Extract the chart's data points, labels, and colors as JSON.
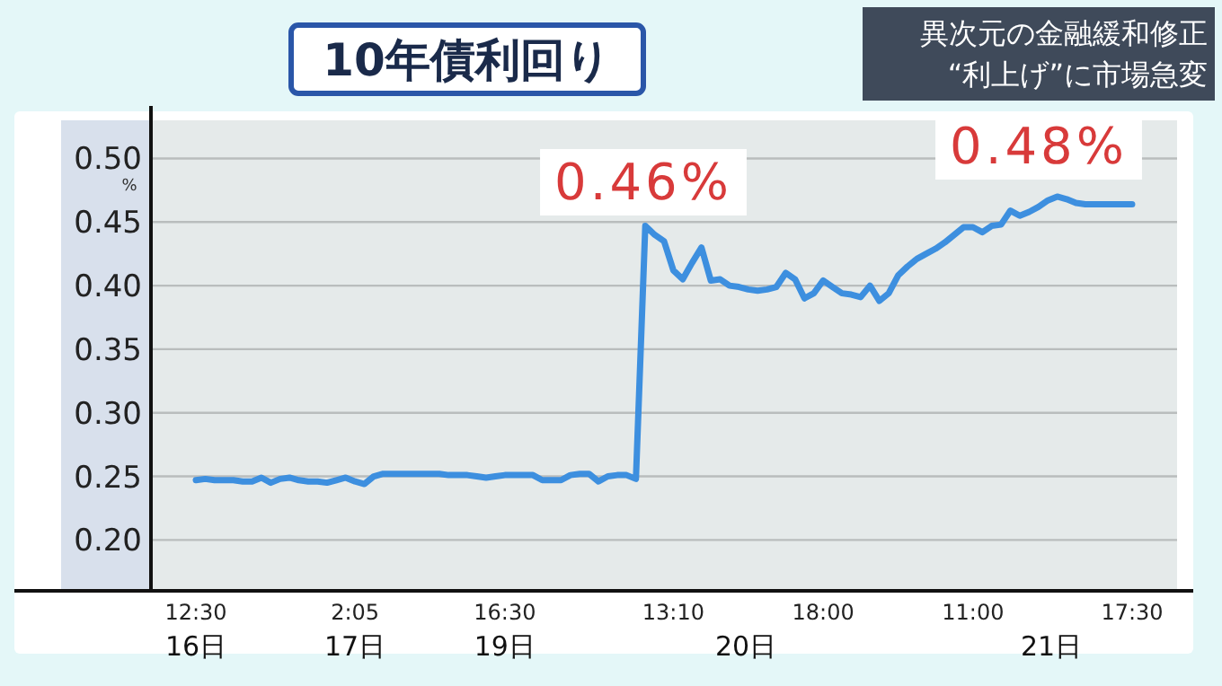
{
  "chart_data": {
    "type": "line",
    "title": "10年債利回り",
    "subtitle": "異次元の金融緩和修正\n“利上げ”に市場急変",
    "ylabel": "%",
    "categories": [
      "12:30\n16日",
      null,
      null,
      null,
      null,
      null,
      null,
      null,
      null,
      null,
      null,
      null,
      null,
      null,
      null,
      null,
      null,
      "2:05\n17日",
      null,
      null,
      null,
      null,
      null,
      null,
      null,
      null,
      null,
      null,
      null,
      null,
      null,
      null,
      null,
      "16:30\n19日",
      null,
      null,
      null,
      null,
      null,
      null,
      null,
      null,
      null,
      null,
      null,
      null,
      null,
      null,
      null,
      null,
      null,
      "13:10",
      null,
      null,
      null,
      null,
      null,
      null,
      null,
      null,
      null,
      null,
      null,
      null,
      null,
      null,
      null,
      "18:00",
      null,
      null,
      null,
      null,
      null,
      null,
      null,
      null,
      null,
      null,
      null,
      null,
      null,
      null,
      null,
      "11:00",
      null,
      null,
      null,
      null,
      null,
      null,
      null,
      null,
      null,
      null,
      null,
      null,
      null,
      null,
      null,
      null,
      "17:30"
    ],
    "series": [
      {
        "color": "#3d8fdf",
        "values": [
          0.247,
          0.248,
          0.247,
          0.247,
          0.247,
          0.246,
          0.246,
          0.249,
          0.245,
          0.248,
          0.249,
          0.247,
          0.246,
          0.246,
          0.245,
          0.247,
          0.249,
          0.246,
          0.244,
          0.25,
          0.252,
          0.252,
          0.252,
          0.252,
          0.252,
          0.252,
          0.252,
          0.251,
          0.251,
          0.251,
          0.25,
          0.249,
          0.25,
          0.251,
          0.251,
          0.251,
          0.251,
          0.247,
          0.247,
          0.247,
          0.251,
          0.252,
          0.252,
          0.246,
          0.25,
          0.251,
          0.251,
          0.248,
          0.447,
          0.44,
          0.435,
          0.412,
          0.405,
          0.418,
          0.43,
          0.404,
          0.405,
          0.4,
          0.399,
          0.397,
          0.396,
          0.397,
          0.399,
          0.41,
          0.405,
          0.39,
          0.394,
          0.404,
          0.399,
          0.394,
          0.393,
          0.391,
          0.4,
          0.388,
          0.394,
          0.408,
          0.415,
          0.421,
          0.425,
          0.429,
          0.434,
          0.44,
          0.446,
          0.446,
          0.442,
          0.447,
          0.448,
          0.459,
          0.455,
          0.458,
          0.462,
          0.467,
          0.47,
          0.468,
          0.465,
          0.464,
          0.464,
          0.464,
          0.464,
          0.464,
          0.464
        ]
      }
    ],
    "ylim": [
      0.16,
      0.53
    ],
    "yticks": [
      {
        "value": 0.2,
        "label": "0.20"
      },
      {
        "value": 0.25,
        "label": "0.25"
      },
      {
        "value": 0.3,
        "label": "0.30"
      },
      {
        "value": 0.35,
        "label": "0.35"
      },
      {
        "value": 0.4,
        "label": "0.40"
      },
      {
        "value": 0.45,
        "label": "0.45"
      },
      {
        "value": 0.5,
        "label": "0.50"
      }
    ],
    "grid": "y",
    "marker": "none",
    "line_style": "solid",
    "annotations": [
      "0.46%",
      "0.48%",
      "20日",
      "21日"
    ]
  }
}
